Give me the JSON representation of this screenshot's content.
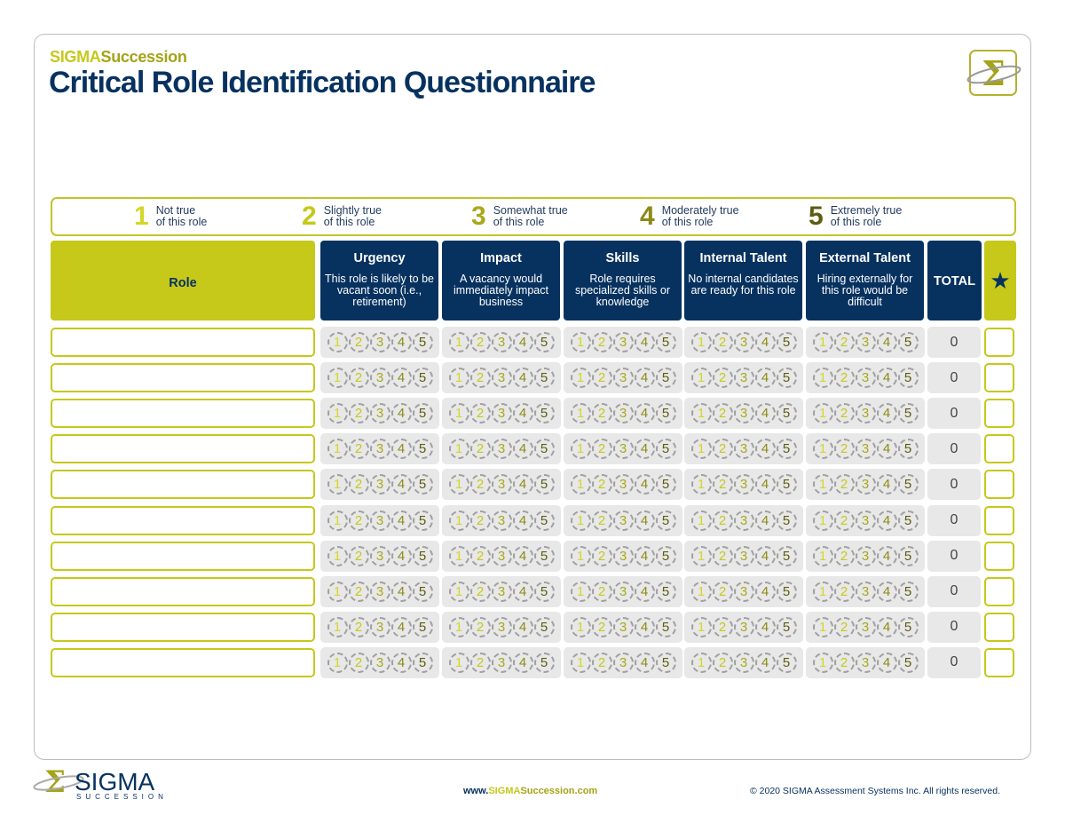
{
  "header": {
    "brand_part1": "SIGMA",
    "brand_part2": "Succession",
    "title": "Critical Role Identification Questionnaire",
    "logo_icon": "sigma-logo-icon"
  },
  "legend": [
    {
      "num": "1",
      "line1": "Not true",
      "line2": "of this role",
      "color": "#d4d62a"
    },
    {
      "num": "2",
      "line1": "Slightly true",
      "line2": "of this role",
      "color": "#c6c81a"
    },
    {
      "num": "3",
      "line1": "Somewhat true",
      "line2": "of this role",
      "color": "#a9a81a"
    },
    {
      "num": "4",
      "line1": "Moderately true",
      "line2": "of this role",
      "color": "#8c8a16"
    },
    {
      "num": "5",
      "line1": "Extremely true",
      "line2": "of this role",
      "color": "#5e5c10"
    }
  ],
  "columns": {
    "role": "Role",
    "criteria": [
      {
        "title": "Urgency",
        "desc": "This role is likely to be vacant soon (i.e., retirement)"
      },
      {
        "title": "Impact",
        "desc": "A vacancy would immediately impact business"
      },
      {
        "title": "Skills",
        "desc": "Role requires specialized skills or knowledge"
      },
      {
        "title": "Internal Talent",
        "desc": "No internal candidates are ready for this role"
      },
      {
        "title": "External Talent",
        "desc": "Hiring externally for this role would be difficult"
      }
    ],
    "total": "TOTAL",
    "star_icon": "star-icon"
  },
  "rating_options": [
    "1",
    "2",
    "3",
    "4",
    "5"
  ],
  "rating_colors": [
    "#d4d62a",
    "#c6c81a",
    "#a9a81a",
    "#8c8a16",
    "#5e5c10"
  ],
  "rows": [
    {
      "role": "",
      "total": "0"
    },
    {
      "role": "",
      "total": "0"
    },
    {
      "role": "",
      "total": "0"
    },
    {
      "role": "",
      "total": "0"
    },
    {
      "role": "",
      "total": "0"
    },
    {
      "role": "",
      "total": "0"
    },
    {
      "role": "",
      "total": "0"
    },
    {
      "role": "",
      "total": "0"
    },
    {
      "role": "",
      "total": "0"
    },
    {
      "role": "",
      "total": "0"
    }
  ],
  "footer": {
    "logo_main": "SIGMA",
    "logo_sub": "SUCCESSION",
    "url_prefix": "www.",
    "url_sigma": "SIGMA",
    "url_succ": "Succession",
    "url_suffix": ".com",
    "copyright": "© 2020 SIGMA Assessment Systems Inc. All rights reserved."
  },
  "colors": {
    "navy": "#073260",
    "lime": "#c6c81a",
    "olive": "#a5a316",
    "cell_gray": "#e8e8e8"
  }
}
